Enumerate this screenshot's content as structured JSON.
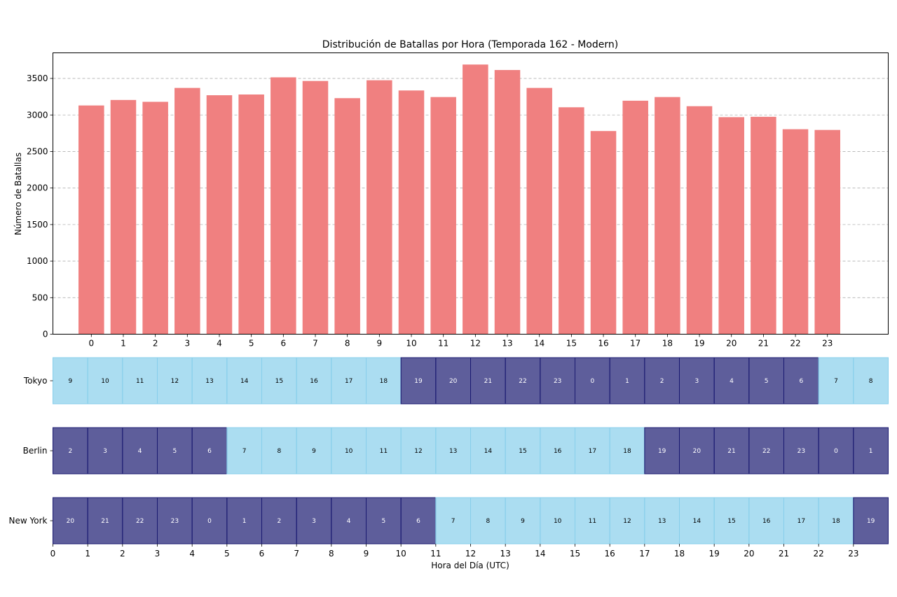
{
  "chart_data": [
    {
      "type": "bar",
      "title": "Distribución de Batallas por Hora (Temporada 162 - Modern)",
      "xlabel": "",
      "ylabel": "Número de Batallas",
      "categories": [
        "0",
        "1",
        "2",
        "3",
        "4",
        "5",
        "6",
        "7",
        "8",
        "9",
        "10",
        "11",
        "12",
        "13",
        "14",
        "15",
        "16",
        "17",
        "18",
        "19",
        "20",
        "21",
        "22",
        "23"
      ],
      "values": [
        3130,
        3205,
        3180,
        3370,
        3270,
        3280,
        3515,
        3465,
        3230,
        3475,
        3335,
        3245,
        3690,
        3615,
        3370,
        3105,
        2780,
        3195,
        3245,
        3120,
        2970,
        2975,
        2805,
        2795
      ],
      "yticks": [
        "0",
        "500",
        "1000",
        "1500",
        "2000",
        "2500",
        "3000",
        "3500"
      ],
      "ylim": [
        0,
        3850
      ],
      "grid": "y",
      "color": "#f08080"
    },
    {
      "type": "heatmap",
      "xlabel": "Hora del Día (UTC)",
      "xticks": [
        "0",
        "1",
        "2",
        "3",
        "4",
        "5",
        "6",
        "7",
        "8",
        "9",
        "10",
        "11",
        "12",
        "13",
        "14",
        "15",
        "16",
        "17",
        "18",
        "19",
        "20",
        "21",
        "22",
        "23"
      ],
      "xlim": [
        0,
        24
      ],
      "day_color": "#87ceeb",
      "night_color": "#191970",
      "legend": "none",
      "rows": [
        {
          "name": "Tokyo",
          "hours": [
            "9",
            "10",
            "11",
            "12",
            "13",
            "14",
            "15",
            "16",
            "17",
            "18",
            "19",
            "20",
            "21",
            "22",
            "23",
            "0",
            "1",
            "2",
            "3",
            "4",
            "5",
            "6",
            "7",
            "8"
          ],
          "night": [
            false,
            false,
            false,
            false,
            false,
            false,
            false,
            false,
            false,
            false,
            true,
            true,
            true,
            true,
            true,
            true,
            true,
            true,
            true,
            true,
            true,
            true,
            false,
            false
          ]
        },
        {
          "name": "Berlin",
          "hours": [
            "2",
            "3",
            "4",
            "5",
            "6",
            "7",
            "8",
            "9",
            "10",
            "11",
            "12",
            "13",
            "14",
            "15",
            "16",
            "17",
            "18",
            "19",
            "20",
            "21",
            "22",
            "23",
            "0",
            "1"
          ],
          "night": [
            true,
            true,
            true,
            true,
            true,
            false,
            false,
            false,
            false,
            false,
            false,
            false,
            false,
            false,
            false,
            false,
            false,
            true,
            true,
            true,
            true,
            true,
            true,
            true
          ]
        },
        {
          "name": "New York",
          "hours": [
            "20",
            "21",
            "22",
            "23",
            "0",
            "1",
            "2",
            "3",
            "4",
            "5",
            "6",
            "7",
            "8",
            "9",
            "10",
            "11",
            "12",
            "13",
            "14",
            "15",
            "16",
            "17",
            "18",
            "19"
          ],
          "night": [
            true,
            true,
            true,
            true,
            true,
            true,
            true,
            true,
            true,
            true,
            true,
            false,
            false,
            false,
            false,
            false,
            false,
            false,
            false,
            false,
            false,
            false,
            false,
            true
          ]
        }
      ]
    }
  ]
}
